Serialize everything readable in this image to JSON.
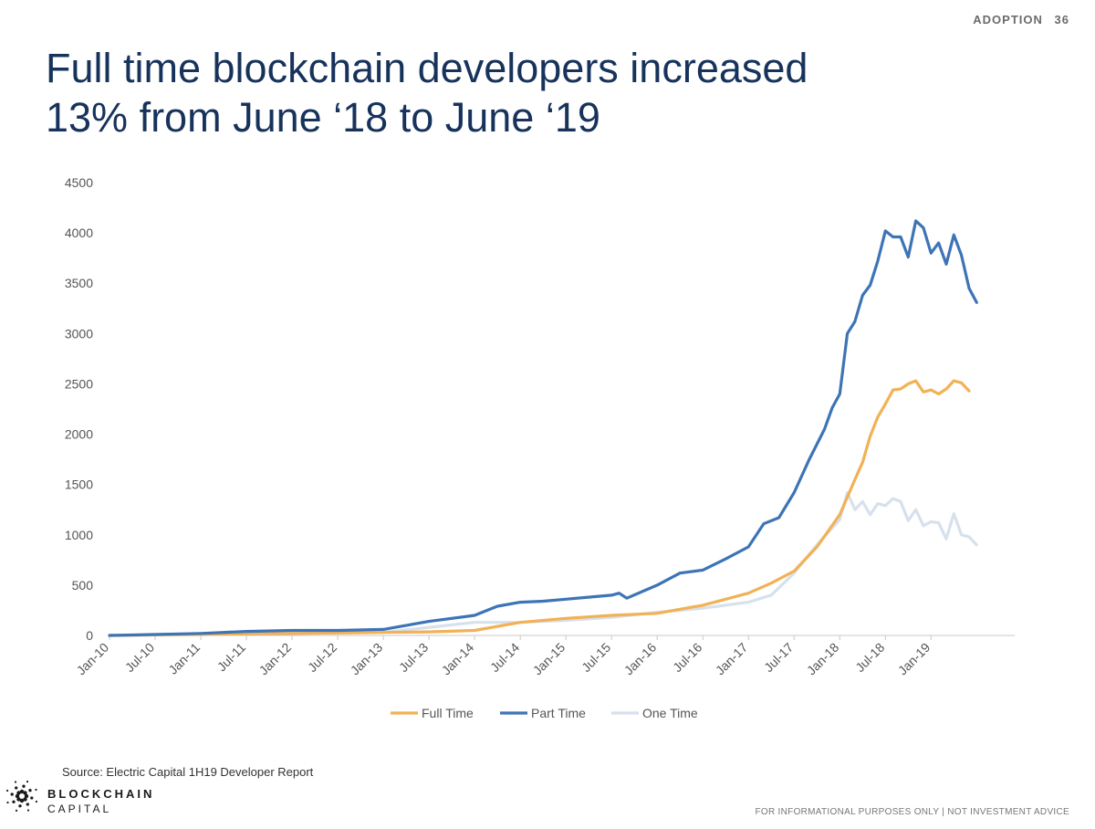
{
  "header": {
    "section": "ADOPTION",
    "page_number": "36"
  },
  "title": {
    "line1": "Full time blockchain developers increased",
    "line2": "13% from June ‘18 to June ‘19"
  },
  "source": "Source: Electric Capital 1H19 Developer Report",
  "brand": {
    "line1": "BLOCKCHAIN",
    "line2": "CAPITAL",
    "logo_icon": "starburst-logo-icon"
  },
  "disclaimer": "FOR INFORMATIONAL PURPOSES ONLY | NOT INVESTMENT ADVICE",
  "chart_data": {
    "type": "line",
    "title": "",
    "xlabel": "",
    "ylabel": "",
    "ylim": [
      0,
      4500
    ],
    "yticks": [
      0,
      500,
      1000,
      1500,
      2000,
      2500,
      3000,
      3500,
      4000,
      4500
    ],
    "x_start": "Jan-10",
    "x_end": "Dec-19",
    "x_tick_labels": [
      "Jan-10",
      "Jul-10",
      "Jan-11",
      "Jul-11",
      "Jan-12",
      "Jul-12",
      "Jan-13",
      "Jul-13",
      "Jan-14",
      "Jul-14",
      "Jan-15",
      "Jul-15",
      "Jan-16",
      "Jul-16",
      "Jan-17",
      "Jul-17",
      "Jan-18",
      "Jul-18",
      "Jan-19"
    ],
    "grid": false,
    "legend_position": "bottom",
    "series": [
      {
        "name": "Full Time",
        "color": "#f2b155",
        "points": [
          [
            "Jan-10",
            0
          ],
          [
            "Jan-11",
            10
          ],
          [
            "Jan-12",
            20
          ],
          [
            "Jan-13",
            30
          ],
          [
            "Jul-13",
            35
          ],
          [
            "Jan-14",
            50
          ],
          [
            "Jul-14",
            130
          ],
          [
            "Jan-15",
            170
          ],
          [
            "Jul-15",
            200
          ],
          [
            "Jan-16",
            220
          ],
          [
            "Jul-16",
            300
          ],
          [
            "Jan-17",
            420
          ],
          [
            "Apr-17",
            520
          ],
          [
            "Jul-17",
            640
          ],
          [
            "Oct-17",
            880
          ],
          [
            "Jan-18",
            1200
          ],
          [
            "Mar-18",
            1550
          ],
          [
            "Apr-18",
            1720
          ],
          [
            "May-18",
            1980
          ],
          [
            "Jun-18",
            2170
          ],
          [
            "Jul-18",
            2300
          ],
          [
            "Aug-18",
            2440
          ],
          [
            "Sep-18",
            2450
          ],
          [
            "Oct-18",
            2500
          ],
          [
            "Nov-18",
            2530
          ],
          [
            "Dec-18",
            2420
          ],
          [
            "Jan-19",
            2440
          ],
          [
            "Feb-19",
            2400
          ],
          [
            "Mar-19",
            2450
          ],
          [
            "Apr-19",
            2530
          ],
          [
            "May-19",
            2510
          ],
          [
            "Jun-19",
            2430
          ]
        ]
      },
      {
        "name": "Part Time",
        "color": "#3d74b6",
        "points": [
          [
            "Jan-10",
            0
          ],
          [
            "Jan-11",
            20
          ],
          [
            "Jul-11",
            40
          ],
          [
            "Jan-12",
            50
          ],
          [
            "Jul-12",
            50
          ],
          [
            "Jan-13",
            60
          ],
          [
            "Jul-13",
            140
          ],
          [
            "Jan-14",
            200
          ],
          [
            "Apr-14",
            290
          ],
          [
            "Jul-14",
            330
          ],
          [
            "Oct-14",
            340
          ],
          [
            "Jan-15",
            360
          ],
          [
            "Jul-15",
            400
          ],
          [
            "Aug-15",
            420
          ],
          [
            "Sep-15",
            370
          ],
          [
            "Jan-16",
            500
          ],
          [
            "Apr-16",
            620
          ],
          [
            "Jul-16",
            650
          ],
          [
            "Oct-16",
            760
          ],
          [
            "Jan-17",
            880
          ],
          [
            "Mar-17",
            1110
          ],
          [
            "May-17",
            1170
          ],
          [
            "Jul-17",
            1420
          ],
          [
            "Sep-17",
            1750
          ],
          [
            "Nov-17",
            2050
          ],
          [
            "Dec-17",
            2260
          ],
          [
            "Jan-18",
            2400
          ],
          [
            "Feb-18",
            3000
          ],
          [
            "Mar-18",
            3120
          ],
          [
            "Apr-18",
            3380
          ],
          [
            "May-18",
            3480
          ],
          [
            "Jun-18",
            3720
          ],
          [
            "Jul-18",
            4020
          ],
          [
            "Aug-18",
            3960
          ],
          [
            "Sep-18",
            3960
          ],
          [
            "Oct-18",
            3760
          ],
          [
            "Nov-18",
            4120
          ],
          [
            "Dec-18",
            4050
          ],
          [
            "Jan-19",
            3800
          ],
          [
            "Feb-19",
            3900
          ],
          [
            "Mar-19",
            3690
          ],
          [
            "Apr-19",
            3980
          ],
          [
            "May-19",
            3780
          ],
          [
            "Jun-19",
            3450
          ],
          [
            "Jul-19",
            3310
          ]
        ]
      },
      {
        "name": "One Time",
        "color": "#d6e1ed",
        "points": [
          [
            "Jan-10",
            0
          ],
          [
            "Jan-11",
            10
          ],
          [
            "Jan-12",
            20
          ],
          [
            "Jan-13",
            30
          ],
          [
            "Jan-14",
            130
          ],
          [
            "Jul-14",
            130
          ],
          [
            "Jan-15",
            150
          ],
          [
            "Jul-15",
            180
          ],
          [
            "Jan-16",
            230
          ],
          [
            "Jul-16",
            270
          ],
          [
            "Jan-17",
            330
          ],
          [
            "Apr-17",
            400
          ],
          [
            "Jul-17",
            620
          ],
          [
            "Oct-17",
            900
          ],
          [
            "Jan-18",
            1150
          ],
          [
            "Feb-18",
            1420
          ],
          [
            "Mar-18",
            1250
          ],
          [
            "Apr-18",
            1330
          ],
          [
            "May-18",
            1200
          ],
          [
            "Jun-18",
            1310
          ],
          [
            "Jul-18",
            1290
          ],
          [
            "Aug-18",
            1360
          ],
          [
            "Sep-18",
            1330
          ],
          [
            "Oct-18",
            1140
          ],
          [
            "Nov-18",
            1250
          ],
          [
            "Dec-18",
            1090
          ],
          [
            "Jan-19",
            1130
          ],
          [
            "Feb-19",
            1120
          ],
          [
            "Mar-19",
            960
          ],
          [
            "Apr-19",
            1210
          ],
          [
            "May-19",
            1000
          ],
          [
            "Jun-19",
            980
          ],
          [
            "Jul-19",
            900
          ]
        ]
      }
    ]
  }
}
